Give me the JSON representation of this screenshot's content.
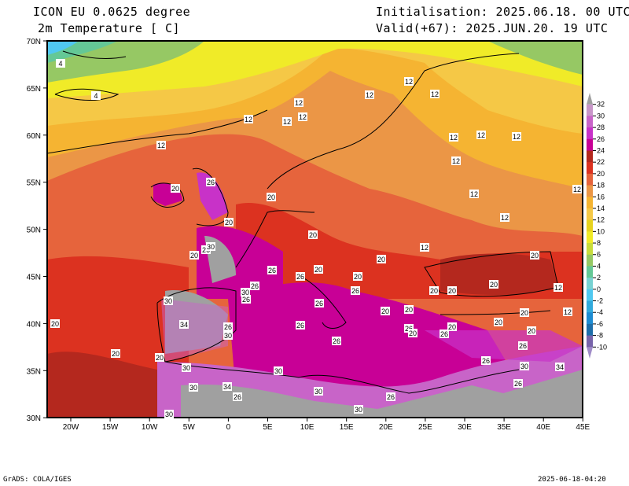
{
  "header": {
    "model": "ICON EU 0.0625 degree",
    "variable": "2m Temperature [ C]",
    "init": "Initialisation: 2025.06.18. 00 UTC",
    "valid": "Valid(+67): 2025.JUN.20. 19 UTC"
  },
  "footer": {
    "credit": "GrADS: COLA/IGES",
    "timestamp": "2025-06-18-04:20"
  },
  "axes": {
    "lat_labels": [
      "70N",
      "65N",
      "60N",
      "55N",
      "50N",
      "45N",
      "40N",
      "35N",
      "30N"
    ],
    "lon_labels": [
      "20W",
      "15W",
      "10W",
      "5W",
      "0",
      "5E",
      "10E",
      "15E",
      "20E",
      "25E",
      "30E",
      "35E",
      "40E",
      "45E"
    ]
  },
  "colorbar": {
    "labels": [
      "32",
      "30",
      "28",
      "26",
      "24",
      "22",
      "20",
      "18",
      "16",
      "14",
      "12",
      "10",
      "8",
      "6",
      "4",
      "2",
      "0",
      "-2",
      "-4",
      "-6",
      "-8",
      "-10"
    ],
    "colors": [
      "#a0a0a0",
      "#c896c8",
      "#c864c8",
      "#c832c8",
      "#c80096",
      "#b4281e",
      "#dc3220",
      "#e6643c",
      "#eb9646",
      "#f5b432",
      "#f5c846",
      "#e6d21e",
      "#f0eb28",
      "#c8dc3c",
      "#96c864",
      "#64c896",
      "#78d2d2",
      "#50c8f0",
      "#32aadc",
      "#1e8cd2",
      "#1e6eaa",
      "#7864aa",
      "#a08cc8"
    ]
  },
  "contour_labels": [
    "4",
    "4",
    "12",
    "12",
    "12",
    "12",
    "12",
    "12",
    "12",
    "12",
    "12",
    "12",
    "12",
    "12",
    "12",
    "12",
    "12",
    "12",
    "12",
    "12",
    "20",
    "26",
    "20",
    "20",
    "20",
    "20",
    "26",
    "30",
    "20",
    "20",
    "20",
    "26",
    "20",
    "26",
    "26",
    "30",
    "26",
    "26",
    "20",
    "20",
    "20",
    "26",
    "30",
    "34",
    "26",
    "30",
    "26",
    "26",
    "20",
    "20",
    "26",
    "20",
    "26",
    "20",
    "20",
    "20",
    "20",
    "26",
    "20",
    "20",
    "20",
    "30",
    "30",
    "26",
    "30",
    "34",
    "26",
    "30",
    "30",
    "34",
    "26",
    "26",
    "30",
    "30"
  ]
}
